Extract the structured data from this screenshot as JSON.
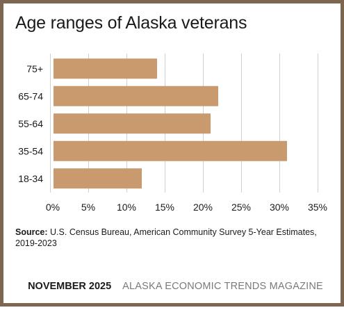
{
  "source": {
    "label": "Source:",
    "text": "U.S. Census Bureau, American Community Survey 5-Year Estimates, 2019-2023"
  },
  "footer": {
    "date": "NOVEMBER 2025",
    "publication": "ALASKA ECONOMIC TRENDS MAGAZINE"
  },
  "colors": {
    "bar": "#c89a6e",
    "frame": "#7d6650",
    "grid": "#d0d0d0"
  },
  "chart_data": {
    "type": "bar",
    "orientation": "horizontal",
    "title": "Age ranges of Alaska veterans",
    "categories": [
      "75+",
      "65-74",
      "55-64",
      "35-54",
      "18-34"
    ],
    "values": [
      14,
      22,
      21,
      31,
      12
    ],
    "xlim": [
      0,
      35
    ],
    "xticks": [
      "0%",
      "5%",
      "10%",
      "15%",
      "20%",
      "25%",
      "30%",
      "35%"
    ],
    "grid": "vertical",
    "legend": "none"
  }
}
